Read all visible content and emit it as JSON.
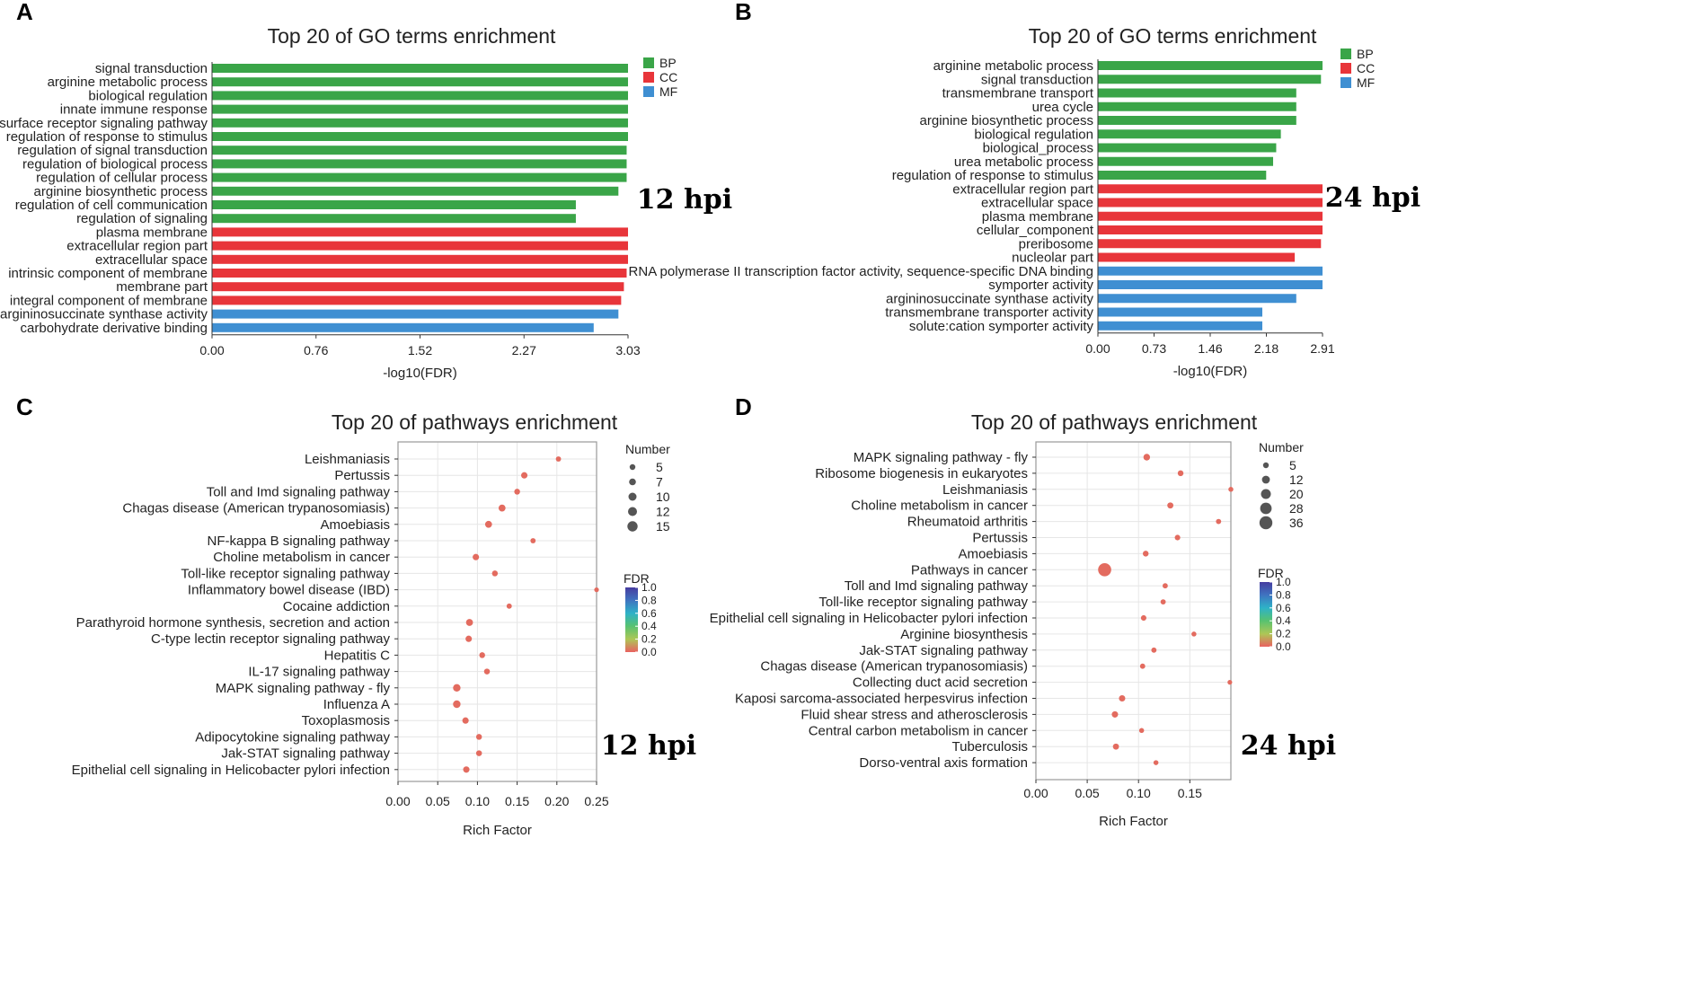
{
  "chart_data": [
    {
      "panel": "A",
      "type": "bar",
      "title": "Top 20 of GO terms enrichment",
      "xlabel": "-log10(FDR)",
      "ylabel": "",
      "xlim": [
        0,
        3.03
      ],
      "xticks": [
        "0.00",
        "0.76",
        "1.52",
        "2.27",
        "3.03"
      ],
      "annotation": "12 hpi",
      "legend": [
        {
          "label": "BP",
          "color": "#3aa548"
        },
        {
          "label": "CC",
          "color": "#e8353a"
        },
        {
          "label": "MF",
          "color": "#3f8fd2"
        }
      ],
      "categories": [
        "signal transduction",
        "arginine metabolic process",
        "biological regulation",
        "innate immune response",
        "cell surface receptor signaling pathway",
        "regulation of response to stimulus",
        "regulation of signal transduction",
        "regulation of biological process",
        "regulation of cellular process",
        "arginine biosynthetic process",
        "regulation of cell communication",
        "regulation of signaling",
        "plasma membrane",
        "extracellular region part",
        "extracellular space",
        "intrinsic component of membrane",
        "membrane part",
        "integral component of membrane",
        "argininosuccinate synthase activity",
        "carbohydrate derivative binding"
      ],
      "values": [
        3.03,
        3.03,
        3.03,
        3.03,
        3.03,
        3.03,
        3.02,
        3.02,
        3.02,
        2.96,
        2.65,
        2.65,
        3.03,
        3.03,
        3.03,
        3.02,
        3.0,
        2.98,
        2.96,
        2.78
      ],
      "groups": [
        "BP",
        "BP",
        "BP",
        "BP",
        "BP",
        "BP",
        "BP",
        "BP",
        "BP",
        "BP",
        "BP",
        "BP",
        "CC",
        "CC",
        "CC",
        "CC",
        "CC",
        "CC",
        "MF",
        "MF"
      ]
    },
    {
      "panel": "B",
      "type": "bar",
      "title": "Top 20 of GO terms enrichment",
      "xlabel": "-log10(FDR)",
      "ylabel": "",
      "xlim": [
        0,
        2.91
      ],
      "xticks": [
        "0.00",
        "0.73",
        "1.46",
        "2.18",
        "2.91"
      ],
      "annotation": "24 hpi",
      "legend": [
        {
          "label": "BP",
          "color": "#3aa548"
        },
        {
          "label": "CC",
          "color": "#e8353a"
        },
        {
          "label": "MF",
          "color": "#3f8fd2"
        }
      ],
      "categories": [
        "arginine metabolic process",
        "signal transduction",
        "transmembrane transport",
        "urea cycle",
        "arginine biosynthetic process",
        "biological regulation",
        "biological_process",
        "urea metabolic process",
        "regulation of response to stimulus",
        "extracellular region part",
        "extracellular space",
        "plasma membrane",
        "cellular_component",
        "preribosome",
        "nucleolar part",
        "RNA polymerase II transcription factor activity, sequence-specific DNA binding",
        "symporter activity",
        "argininosuccinate synthase activity",
        "transmembrane transporter activity",
        "solute:cation symporter activity"
      ],
      "values": [
        2.91,
        2.89,
        2.57,
        2.57,
        2.57,
        2.37,
        2.31,
        2.27,
        2.18,
        2.91,
        2.91,
        2.91,
        2.91,
        2.89,
        2.55,
        2.91,
        2.91,
        2.57,
        2.13,
        2.13
      ],
      "groups": [
        "BP",
        "BP",
        "BP",
        "BP",
        "BP",
        "BP",
        "BP",
        "BP",
        "BP",
        "CC",
        "CC",
        "CC",
        "CC",
        "CC",
        "CC",
        "MF",
        "MF",
        "MF",
        "MF",
        "MF"
      ]
    },
    {
      "panel": "C",
      "type": "scatter",
      "title": "Top 20 of pathways enrichment",
      "xlabel": "Rich Factor",
      "ylabel": "",
      "xlim": [
        0,
        0.25
      ],
      "xticks": [
        0,
        0.05,
        0.1,
        0.15,
        0.2,
        0.25
      ],
      "xtick_labels": [
        "0.00",
        "0.05",
        "0.10",
        "0.15",
        "0.20",
        "0.25"
      ],
      "annotation": "12 hpi",
      "size_legend_title": "Number",
      "size_legend": [
        5,
        7,
        10,
        12,
        15
      ],
      "color_legend_title": "FDR",
      "color_legend_ticks": [
        "1.0",
        "0.8",
        "0.6",
        "0.4",
        "0.2",
        "0.0"
      ],
      "categories": [
        "Leishmaniasis",
        "Pertussis",
        "Toll and Imd signaling pathway",
        "Chagas disease (American trypanosomiasis)",
        "Amoebiasis",
        "NF-kappa B signaling pathway",
        "Choline metabolism in cancer",
        "Toll-like receptor signaling pathway",
        "Inflammatory bowel disease (IBD)",
        "Cocaine addiction",
        "Parathyroid hormone synthesis, secretion and action",
        "C-type lectin receptor signaling pathway",
        "Hepatitis C",
        "IL-17 signaling pathway",
        "MAPK signaling pathway - fly",
        "Influenza A",
        "Toxoplasmosis",
        "Adipocytokine signaling pathway",
        "Jak-STAT signaling pathway",
        "Epithelial cell signaling in Helicobacter pylori infection"
      ],
      "x": [
        0.202,
        0.159,
        0.15,
        0.131,
        0.114,
        0.17,
        0.098,
        0.122,
        0.25,
        0.14,
        0.09,
        0.089,
        0.106,
        0.112,
        0.074,
        0.074,
        0.085,
        0.102,
        0.102,
        0.086
      ],
      "number": [
        5,
        7,
        6,
        8,
        8,
        5,
        7,
        6,
        4,
        5,
        8,
        7,
        6,
        6,
        9,
        9,
        7,
        6,
        6,
        7
      ],
      "fdr": [
        0.02,
        0.02,
        0.02,
        0.02,
        0.02,
        0.02,
        0.02,
        0.02,
        0.02,
        0.02,
        0.02,
        0.02,
        0.02,
        0.02,
        0.02,
        0.02,
        0.02,
        0.02,
        0.02,
        0.02
      ]
    },
    {
      "panel": "D",
      "type": "scatter",
      "title": "Top 20 of pathways enrichment",
      "xlabel": "Rich Factor",
      "ylabel": "",
      "xlim": [
        0,
        0.19
      ],
      "xticks": [
        0,
        0.05,
        0.1,
        0.15
      ],
      "xtick_labels": [
        "0.00",
        "0.05",
        "0.10",
        "0.15"
      ],
      "annotation": "24 hpi",
      "size_legend_title": "Number",
      "size_legend": [
        5,
        12,
        20,
        28,
        36
      ],
      "color_legend_title": "FDR",
      "color_legend_ticks": [
        "1.0",
        "0.8",
        "0.6",
        "0.4",
        "0.2",
        "0.0"
      ],
      "categories": [
        "MAPK signaling pathway - fly",
        "Ribosome biogenesis in eukaryotes",
        "Leishmaniasis",
        "Choline metabolism in cancer",
        "Rheumatoid arthritis",
        "Pertussis",
        "Amoebiasis",
        "Pathways in cancer",
        "Toll and Imd signaling pathway",
        "Toll-like receptor signaling pathway",
        "Epithelial cell signaling in Helicobacter pylori infection",
        "Arginine biosynthesis",
        "Jak-STAT signaling pathway",
        "Chagas disease (American trypanosomiasis)",
        "Collecting duct acid secretion",
        "Kaposi sarcoma-associated herpesvirus infection",
        "Fluid shear stress and atherosclerosis",
        "Central carbon metabolism in cancer",
        "Tuberculosis",
        "Dorso-ventral axis formation"
      ],
      "x": [
        0.108,
        0.141,
        0.19,
        0.131,
        0.178,
        0.138,
        0.107,
        0.067,
        0.126,
        0.124,
        0.105,
        0.154,
        0.115,
        0.104,
        0.189,
        0.084,
        0.077,
        0.103,
        0.078,
        0.117
      ],
      "number": [
        11,
        8,
        5,
        9,
        6,
        7,
        8,
        34,
        6,
        6,
        7,
        5,
        6,
        6,
        4,
        10,
        10,
        5,
        9,
        5
      ],
      "fdr": [
        0.02,
        0.02,
        0.02,
        0.02,
        0.02,
        0.02,
        0.02,
        0.02,
        0.02,
        0.02,
        0.02,
        0.02,
        0.02,
        0.02,
        0.02,
        0.02,
        0.02,
        0.02,
        0.02,
        0.02
      ]
    }
  ]
}
